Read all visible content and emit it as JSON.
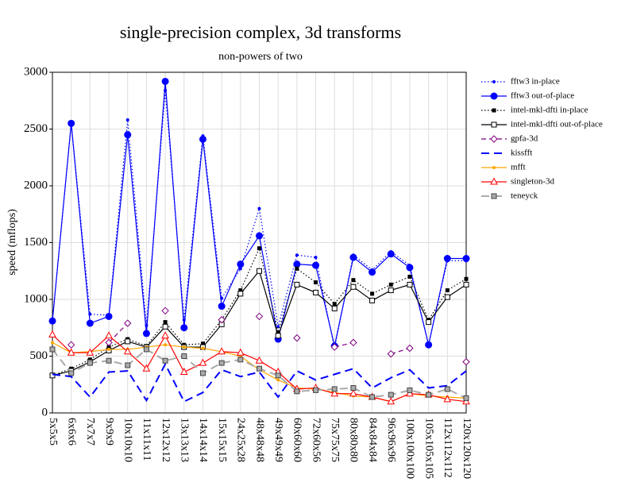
{
  "chart_data": {
    "type": "line",
    "title": "single-precision complex, 3d transforms",
    "subtitle": "non-powers of two",
    "y_label": "speed (mflops)",
    "categories": [
      "5x5x5",
      "6x6x6",
      "7x7x7",
      "9x9x9",
      "10x10x10",
      "11x11x11",
      "12x12x12",
      "13x13x13",
      "14x14x14",
      "15x15x15",
      "24x25x28",
      "48x48x48",
      "49x49x49",
      "60x60x60",
      "72x60x56",
      "75x75x75",
      "80x80x80",
      "84x84x84",
      "96x96x96",
      "100x100x100",
      "105x105x105",
      "112x112x112",
      "120x120x120"
    ],
    "ylim": [
      0,
      3000
    ],
    "yticks": [
      0,
      500,
      1000,
      1500,
      2000,
      2500,
      3000
    ],
    "grid": true,
    "legend": "right",
    "series": [
      {
        "name": "fftw3 in-place",
        "color": "#0000ff",
        "dash": "dotted",
        "marker": "dot",
        "values": [
          810,
          2550,
          870,
          860,
          2580,
          770,
          2840,
          820,
          2440,
          1010,
          1270,
          1800,
          760,
          1390,
          1370,
          570,
          1390,
          1260,
          1420,
          1300,
          600,
          1340,
          1340
        ]
      },
      {
        "name": "fftw3 out-of-place",
        "color": "#0000ff",
        "dash": "solid",
        "marker": "circle",
        "values": [
          810,
          2550,
          790,
          850,
          2450,
          700,
          2920,
          750,
          2410,
          940,
          1310,
          1560,
          650,
          1310,
          1300,
          590,
          1370,
          1240,
          1400,
          1280,
          600,
          1360,
          1360
        ]
      },
      {
        "name": "intel-mkl-dfti in-place",
        "color": "#000000",
        "dash": "dotted",
        "marker": "square",
        "values": [
          330,
          390,
          470,
          580,
          650,
          590,
          800,
          600,
          610,
          820,
          1080,
          1450,
          710,
          1270,
          1150,
          960,
          1170,
          1050,
          1130,
          1200,
          820,
          1080,
          1180
        ]
      },
      {
        "name": "intel-mkl-dfti out-of-place",
        "color": "#000000",
        "dash": "solid",
        "marker": "open-square",
        "values": [
          330,
          370,
          450,
          550,
          630,
          580,
          760,
          580,
          580,
          780,
          1050,
          1250,
          680,
          1130,
          1060,
          920,
          1110,
          990,
          1080,
          1130,
          800,
          1020,
          1130
        ]
      },
      {
        "name": "gpfa-3d",
        "color": "#800080",
        "dash": "dashed",
        "marker": "diamond",
        "values": [
          null,
          600,
          null,
          620,
          790,
          null,
          900,
          null,
          null,
          820,
          null,
          850,
          null,
          660,
          null,
          580,
          620,
          null,
          520,
          570,
          null,
          null,
          450
        ]
      },
      {
        "name": "kissfft",
        "color": "#0000ff",
        "dash": "long-dashed",
        "marker": "none",
        "values": [
          340,
          320,
          140,
          360,
          370,
          110,
          430,
          100,
          180,
          380,
          320,
          360,
          140,
          370,
          290,
          340,
          390,
          220,
          310,
          380,
          220,
          240,
          370
        ]
      },
      {
        "name": "mfft",
        "color": "#ffa500",
        "dash": "solid",
        "marker": "dot",
        "values": [
          620,
          530,
          540,
          560,
          560,
          580,
          600,
          580,
          570,
          540,
          500,
          380,
          290,
          220,
          210,
          180,
          150,
          140,
          100,
          170,
          150,
          140,
          130
        ]
      },
      {
        "name": "singleton-3d",
        "color": "#ff0000",
        "dash": "solid",
        "marker": "triangle",
        "values": [
          690,
          530,
          530,
          680,
          540,
          390,
          680,
          360,
          440,
          540,
          530,
          460,
          360,
          210,
          220,
          170,
          170,
          140,
          100,
          170,
          160,
          120,
          100
        ]
      },
      {
        "name": "teneyck",
        "color": "#aaaaaa",
        "dash": "long-dashed",
        "marker": "gray-square",
        "values": [
          560,
          350,
          440,
          460,
          420,
          560,
          460,
          500,
          350,
          440,
          470,
          390,
          330,
          190,
          200,
          210,
          220,
          140,
          160,
          200,
          160,
          210,
          130
        ]
      }
    ]
  }
}
